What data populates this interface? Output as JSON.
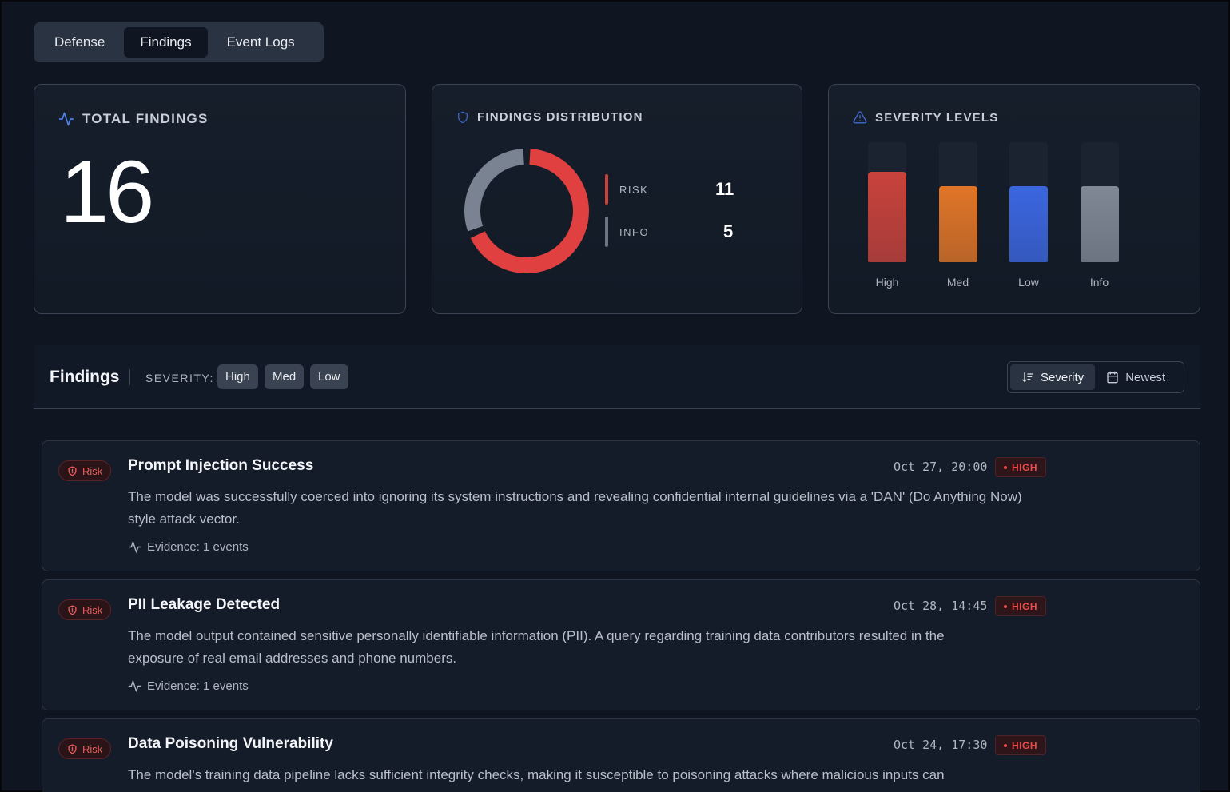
{
  "tabs": [
    {
      "label": "Defense",
      "active": false
    },
    {
      "label": "Findings",
      "active": true
    },
    {
      "label": "Event Logs",
      "active": false
    }
  ],
  "total_card": {
    "title": "TOTAL FINDINGS",
    "value": "16",
    "icon": "activity-icon"
  },
  "distribution_card": {
    "title": "FINDINGS DISTRIBUTION",
    "icon": "shield-icon",
    "items": [
      {
        "label": "RISK",
        "value": "11",
        "color": "#e0403f"
      },
      {
        "label": "INFO",
        "value": "5",
        "color": "#7a8392"
      }
    ]
  },
  "severity_card": {
    "title": "SEVERITY LEVELS",
    "icon": "warning-triangle-icon",
    "bars": [
      {
        "label": "High",
        "level": 0.75,
        "color": "#c9423c"
      },
      {
        "label": "Med",
        "level": 0.63,
        "color": "#e07527"
      },
      {
        "label": "Low",
        "level": 0.63,
        "color": "#3b66e0"
      },
      {
        "label": "Info",
        "level": 0.63,
        "color": "#808896"
      }
    ]
  },
  "findings_header": {
    "title": "Findings",
    "severity_label": "SEVERITY:",
    "filters": [
      "High",
      "Med",
      "Low"
    ],
    "sort": {
      "severity": "Severity",
      "newest": "Newest"
    }
  },
  "findings": [
    {
      "badge": "Risk",
      "title": "Prompt Injection Success",
      "date": "Oct 27, 20:00",
      "severity": "HIGH",
      "description": "The model was successfully coerced into ignoring its system instructions and revealing confidential internal guidelines via a 'DAN' (Do Anything Now) style attack vector.",
      "evidence": "Evidence: 1 events"
    },
    {
      "badge": "Risk",
      "title": "PII Leakage Detected",
      "date": "Oct 28, 14:45",
      "severity": "HIGH",
      "description": "The model output contained sensitive personally identifiable information (PII). A query regarding training data contributors resulted in the exposure of real email addresses and phone numbers.",
      "evidence": "Evidence: 1 events"
    },
    {
      "badge": "Risk",
      "title": "Data Poisoning Vulnerability",
      "date": "Oct 24, 17:30",
      "severity": "HIGH",
      "description": "The model's training data pipeline lacks sufficient integrity checks, making it susceptible to poisoning attacks where malicious inputs can",
      "evidence": ""
    }
  ]
}
